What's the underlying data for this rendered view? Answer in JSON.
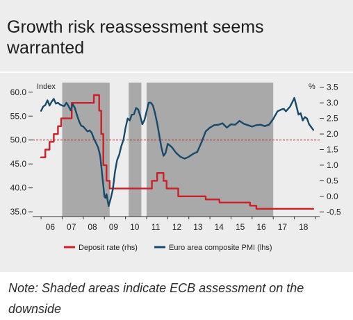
{
  "title": "Growth risk reassessment seems warranted",
  "note": "Note: Shaded areas indicate ECB assessment on the downside",
  "colors": {
    "pmi": "#17496b",
    "deposit": "#cc2027",
    "shade": "#a9a9a9",
    "reference": "#b03030"
  },
  "chart_data": {
    "type": "line",
    "x_ticks": [
      "06",
      "07",
      "08",
      "09",
      "10",
      "11",
      "12",
      "13",
      "14",
      "15",
      "16",
      "17",
      "18"
    ],
    "x_range": [
      2005.6,
      2019.2
    ],
    "left_axis": {
      "label": "Index",
      "ticks": [
        "60.0",
        "55.0",
        "50.0",
        "45.0",
        "40.0",
        "35.0"
      ],
      "range": [
        34.0,
        62.0
      ]
    },
    "right_axis": {
      "label": "%",
      "ticks": [
        "3.5",
        "3.0",
        "2.5",
        "2.0",
        "1.5",
        "1.0",
        "0.5",
        "0.0",
        "-0.5"
      ],
      "range": [
        -0.65,
        3.65
      ]
    },
    "reference_line": {
      "axis": "left",
      "value": 50.0,
      "style": "dashed"
    },
    "shaded_periods": [
      [
        2007.0,
        2009.25
      ],
      [
        2010.15,
        2010.75
      ],
      [
        2011.0,
        2017.0
      ]
    ],
    "legend": [
      "Deposit rate (rhs)",
      "Euro area composite PMI (lhs)"
    ],
    "legend_position": "bottom",
    "series": [
      {
        "name": "Euro area composite PMI (lhs)",
        "axis": "left",
        "x": [
          2006.0,
          2006.1,
          2006.2,
          2006.3,
          2006.4,
          2006.5,
          2006.6,
          2006.7,
          2006.8,
          2006.9,
          2007.0,
          2007.1,
          2007.2,
          2007.3,
          2007.4,
          2007.5,
          2007.6,
          2007.7,
          2007.8,
          2007.9,
          2008.0,
          2008.1,
          2008.2,
          2008.3,
          2008.4,
          2008.5,
          2008.6,
          2008.7,
          2008.8,
          2008.9,
          2009.0,
          2009.05,
          2009.1,
          2009.2,
          2009.3,
          2009.4,
          2009.5,
          2009.6,
          2009.7,
          2009.8,
          2009.9,
          2010.0,
          2010.1,
          2010.2,
          2010.3,
          2010.4,
          2010.5,
          2010.6,
          2010.7,
          2010.8,
          2010.9,
          2011.0,
          2011.1,
          2011.2,
          2011.3,
          2011.4,
          2011.5,
          2011.6,
          2011.7,
          2011.8,
          2011.9,
          2012.0,
          2012.2,
          2012.4,
          2012.6,
          2012.8,
          2013.0,
          2013.2,
          2013.4,
          2013.6,
          2013.8,
          2014.0,
          2014.2,
          2014.4,
          2014.6,
          2014.8,
          2015.0,
          2015.2,
          2015.4,
          2015.6,
          2015.8,
          2016.0,
          2016.2,
          2016.4,
          2016.6,
          2016.8,
          2017.0,
          2017.2,
          2017.4,
          2017.5,
          2017.6,
          2017.8,
          2018.0,
          2018.1,
          2018.2,
          2018.3,
          2018.4,
          2018.5,
          2018.6,
          2018.7,
          2018.8,
          2018.9
        ],
        "y": [
          56.1,
          57.0,
          57.3,
          58.3,
          57.2,
          58.0,
          58.6,
          57.6,
          57.8,
          57.4,
          57.2,
          57.1,
          57.8,
          57.1,
          56.2,
          57.5,
          56.7,
          55.2,
          53.9,
          53.0,
          52.8,
          52.3,
          51.8,
          52.0,
          51.5,
          50.3,
          49.4,
          48.5,
          46.7,
          42.5,
          38.2,
          37.9,
          38.7,
          36.2,
          37.8,
          39.7,
          43.3,
          45.8,
          46.9,
          48.7,
          50.0,
          52.5,
          54.5,
          54.1,
          55.3,
          55.4,
          56.7,
          56.4,
          55.0,
          53.3,
          54.2,
          56.0,
          57.8,
          57.8,
          57.2,
          55.6,
          53.5,
          51.0,
          48.5,
          46.7,
          47.3,
          49.2,
          48.5,
          47.3,
          46.5,
          46.1,
          46.5,
          47.1,
          47.5,
          49.5,
          51.8,
          52.6,
          53.1,
          53.2,
          53.5,
          52.6,
          53.3,
          53.2,
          54.0,
          53.4,
          53.1,
          52.8,
          53.1,
          53.2,
          52.9,
          53.2,
          54.4,
          56.0,
          56.4,
          56.5,
          56.0,
          57.0,
          58.8,
          57.1,
          55.3,
          55.6,
          54.1,
          54.8,
          54.5,
          53.3,
          52.7,
          52.1
        ],
        "style": {
          "color_key": "pmi",
          "dash": "solid"
        }
      },
      {
        "name": "Deposit rate (rhs)",
        "axis": "right",
        "x": [
          2006.0,
          2006.2,
          2006.2,
          2006.4,
          2006.4,
          2006.6,
          2006.6,
          2006.8,
          2006.8,
          2006.95,
          2006.95,
          2007.45,
          2007.45,
          2008.5,
          2008.5,
          2008.75,
          2008.75,
          2008.85,
          2008.85,
          2008.95,
          2008.95,
          2009.1,
          2009.1,
          2009.25,
          2009.25,
          2009.35,
          2009.35,
          2011.25,
          2011.25,
          2011.5,
          2011.5,
          2011.8,
          2011.8,
          2011.95,
          2011.95,
          2012.5,
          2012.5,
          2013.8,
          2013.8,
          2014.45,
          2014.45,
          2014.7,
          2014.7,
          2015.9,
          2015.9,
          2016.2,
          2016.2,
          2018.9
        ],
        "y": [
          1.25,
          1.25,
          1.5,
          1.5,
          1.75,
          1.75,
          2.0,
          2.0,
          2.25,
          2.25,
          2.5,
          2.5,
          3.0,
          3.0,
          3.25,
          3.25,
          2.75,
          2.75,
          2.0,
          2.0,
          1.0,
          1.0,
          0.5,
          0.5,
          0.25,
          0.25,
          0.25,
          0.25,
          0.5,
          0.5,
          0.75,
          0.75,
          0.5,
          0.5,
          0.25,
          0.25,
          0.0,
          0.0,
          -0.1,
          -0.1,
          -0.2,
          -0.2,
          -0.2,
          -0.2,
          -0.3,
          -0.3,
          -0.4,
          -0.4
        ],
        "style": {
          "color_key": "deposit",
          "dash": "solid"
        }
      }
    ]
  }
}
